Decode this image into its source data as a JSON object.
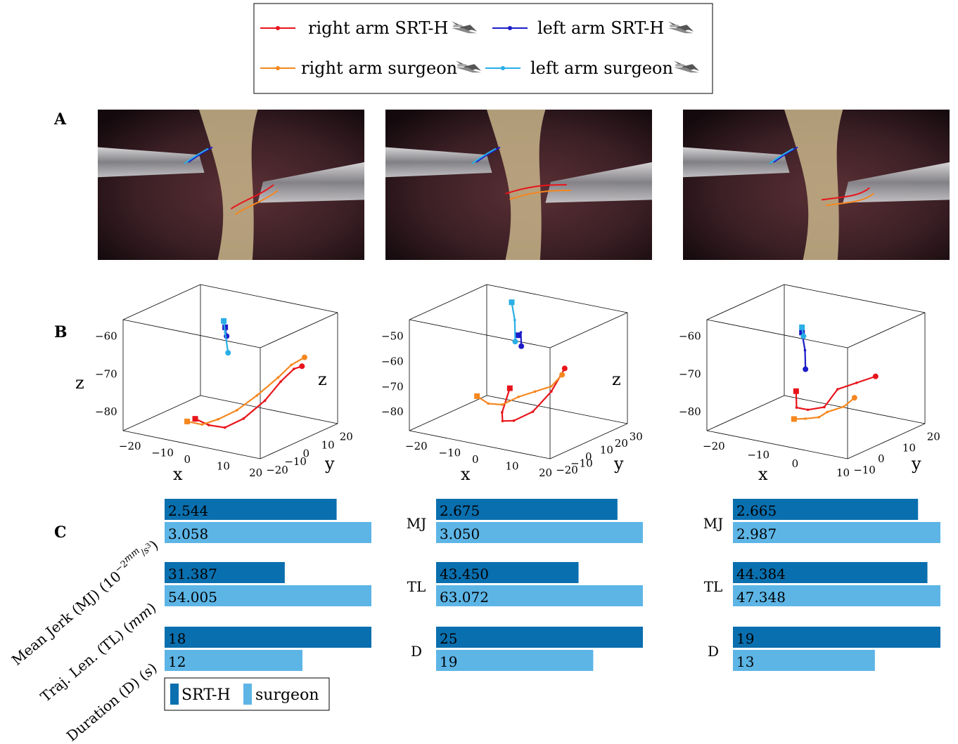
{
  "legend": {
    "items": [
      {
        "label": "right arm SRT-H",
        "color": "#e8141b",
        "icon": "needle-driver-icon"
      },
      {
        "label": "left arm SRT-H",
        "color": "#1c1cc8",
        "icon": "needle-driver-icon"
      },
      {
        "label": "right arm surgeon",
        "color": "#f5871f",
        "icon": "needle-driver-icon"
      },
      {
        "label": "left arm surgeon",
        "color": "#29aee6",
        "icon": "needle-driver-icon"
      }
    ]
  },
  "panels": {
    "A": "A",
    "B": "B",
    "C": "C"
  },
  "colors": {
    "srth_bar": "#0a6fae",
    "surgeon_bar": "#5db5e6",
    "right_srth": "#e8141b",
    "left_srth": "#1c1cc8",
    "right_surgeon": "#f5871f",
    "left_surgeon": "#29aee6"
  },
  "chart_data": [
    {
      "type": "scatter",
      "subtype": "3d-trajectory",
      "xlabel": "x",
      "ylabel": "y",
      "zlabel": "z",
      "x_ticks": [
        "−20",
        "−10",
        "0",
        "10",
        "20"
      ],
      "y_ticks": [
        "−20",
        "−10",
        "0",
        "10",
        "20"
      ],
      "z_ticks": [
        "−60",
        "−70",
        "−80"
      ],
      "series": [
        {
          "name": "right arm SRT-H",
          "x": [
            -2,
            2,
            6,
            10,
            14,
            16,
            18,
            20
          ],
          "y": [
            -18,
            -16,
            -12,
            -6,
            2,
            10,
            16,
            18
          ],
          "z": [
            -80,
            -82,
            -83,
            -80,
            -74,
            -68,
            -64,
            -63
          ]
        },
        {
          "name": "right arm surgeon",
          "x": [
            -4,
            0,
            4,
            8,
            12,
            16,
            18,
            20
          ],
          "y": [
            -20,
            -17,
            -13,
            -7,
            0,
            8,
            14,
            20
          ],
          "z": [
            -81,
            -82,
            -80,
            -77,
            -72,
            -66,
            -62,
            -60
          ]
        },
        {
          "name": "left arm SRT-H",
          "x": [
            -8,
            -7
          ],
          "y": [
            18,
            17
          ],
          "z": [
            -54,
            -57
          ]
        },
        {
          "name": "left arm surgeon",
          "x": [
            -9,
            -8,
            -6
          ],
          "y": [
            19,
            18,
            16
          ],
          "z": [
            -52,
            -56,
            -63
          ]
        }
      ]
    },
    {
      "type": "scatter",
      "subtype": "3d-trajectory",
      "xlabel": "x",
      "ylabel": "y",
      "zlabel": "z",
      "x_ticks": [
        "−20",
        "−10",
        "0",
        "10",
        "20"
      ],
      "y_ticks": [
        "−20",
        "−10",
        "0",
        "10",
        "20",
        "30"
      ],
      "z_ticks": [
        "−50",
        "−60",
        "−70",
        "−80"
      ],
      "series": [
        {
          "name": "right arm SRT-H",
          "x": [
            2,
            2,
            4,
            8,
            12,
            14,
            16
          ],
          "y": [
            -6,
            -12,
            -16,
            -16,
            -10,
            0,
            6
          ],
          "z": [
            -70,
            -78,
            -80,
            -79,
            -76,
            -70,
            -62
          ]
        },
        {
          "name": "right arm surgeon",
          "x": [
            -6,
            -2,
            2,
            6,
            10,
            14,
            16
          ],
          "y": [
            -14,
            -14,
            -12,
            -8,
            -4,
            0,
            4
          ],
          "z": [
            -73,
            -75,
            -75,
            -72,
            -70,
            -68,
            -64
          ]
        },
        {
          "name": "left arm SRT-H",
          "x": [
            -8,
            -6,
            -4
          ],
          "y": [
            22,
            20,
            16
          ],
          "z": [
            -58,
            -56,
            -60
          ]
        },
        {
          "name": "left arm surgeon",
          "x": [
            -12,
            -10,
            -8
          ],
          "y": [
            26,
            24,
            20
          ],
          "z": [
            -47,
            -53,
            -60
          ]
        }
      ]
    },
    {
      "type": "scatter",
      "subtype": "3d-trajectory",
      "xlabel": "x",
      "ylabel": "y",
      "zlabel": "z",
      "x_ticks": [
        "−20",
        "−10",
        "0",
        "10"
      ],
      "y_ticks": [
        "−10",
        "0",
        "10",
        "20"
      ],
      "z_ticks": [
        "−60",
        "−70",
        "−80"
      ],
      "series": [
        {
          "name": "right arm SRT-H",
          "x": [
            -2,
            0,
            4,
            8,
            10,
            14,
            18
          ],
          "y": [
            -6,
            -10,
            -10,
            -6,
            0,
            6,
            12
          ],
          "z": [
            -72,
            -77,
            -77,
            -76,
            -70,
            -68,
            -66
          ]
        },
        {
          "name": "right arm surgeon",
          "x": [
            0,
            4,
            8,
            10,
            14,
            16
          ],
          "y": [
            -12,
            -12,
            -10,
            -8,
            -4,
            0
          ],
          "z": [
            -81,
            -80,
            -79,
            -77,
            -75,
            -72
          ]
        },
        {
          "name": "left arm SRT-H",
          "x": [
            -10,
            -8,
            -6
          ],
          "y": [
            16,
            14,
            10
          ],
          "z": [
            -56,
            -62,
            -68
          ]
        },
        {
          "name": "left arm surgeon",
          "x": [
            -10,
            -9
          ],
          "y": [
            16,
            15
          ],
          "z": [
            -54,
            -57
          ]
        }
      ]
    },
    {
      "type": "bar",
      "orientation": "horizontal",
      "categories": [
        "Mean Jerk (MJ) (10^−2 mm/s³)",
        "Traj. Len. (TL) (mm)",
        "Duration (D) (s)"
      ],
      "series": [
        {
          "name": "SRT-H",
          "values": [
            2.544,
            31.387,
            18
          ],
          "labels": [
            "2.544",
            "31.387",
            "18"
          ]
        },
        {
          "name": "surgeon",
          "values": [
            3.058,
            54.005,
            12
          ],
          "labels": [
            "3.058",
            "54.005",
            "12"
          ]
        }
      ],
      "legend": [
        "SRT-H",
        "surgeon"
      ]
    },
    {
      "type": "bar",
      "orientation": "horizontal",
      "categories": [
        "MJ",
        "TL",
        "D"
      ],
      "series": [
        {
          "name": "SRT-H",
          "values": [
            2.675,
            43.45,
            25
          ],
          "labels": [
            "2.675",
            "43.450",
            "25"
          ]
        },
        {
          "name": "surgeon",
          "values": [
            3.05,
            63.072,
            19
          ],
          "labels": [
            "3.050",
            "63.072",
            "19"
          ]
        }
      ]
    },
    {
      "type": "bar",
      "orientation": "horizontal",
      "categories": [
        "MJ",
        "TL",
        "D"
      ],
      "series": [
        {
          "name": "SRT-H",
          "values": [
            2.665,
            44.384,
            19
          ],
          "labels": [
            "2.665",
            "44.384",
            "19"
          ]
        },
        {
          "name": "surgeon",
          "values": [
            2.987,
            47.348,
            13
          ],
          "labels": [
            "2.987",
            "47.348",
            "13"
          ]
        }
      ]
    }
  ],
  "bar_legend": {
    "srth": "SRT-H",
    "surgeon": "surgeon"
  },
  "ylabels_panel1": {
    "mj": "Mean Jerk (MJ) (10",
    "mj_exp": "−2",
    "mj_unit_num": "mm",
    "mj_unit_den": "s",
    "mj_unit_den_exp": "3",
    "mj_close": ")",
    "tl": "Traj. Len. (TL) (",
    "tl_unit": "mm",
    "tl_close": ")",
    "d": "Duration (D) (",
    "d_unit": "s",
    "d_close": ")"
  }
}
